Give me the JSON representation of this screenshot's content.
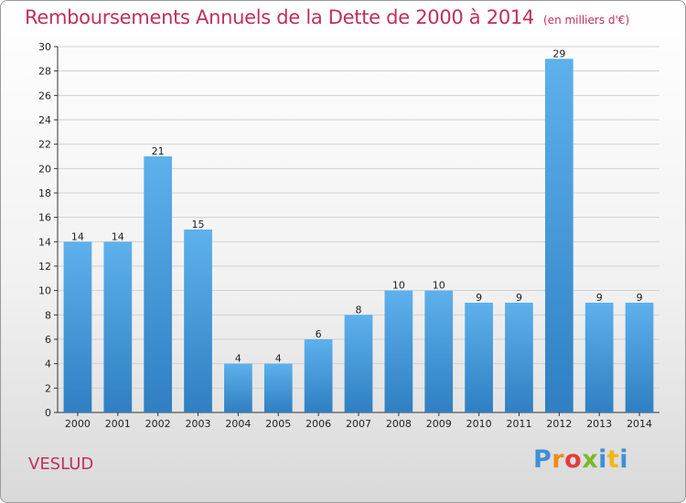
{
  "header": {
    "title": "Remboursements Annuels de la Dette de 2000 à 2014",
    "unit": "(en milliers d'€)"
  },
  "footer": {
    "commune": "VESLUD",
    "logo": "Proxiti"
  },
  "colors": {
    "title": "#c0305a",
    "bar_top": "#5db1ec",
    "bar_bottom": "#2f7fc2",
    "grid": "#d0d0d0",
    "axis": "#333333"
  },
  "chart_data": {
    "type": "bar",
    "title": "Remboursements Annuels de la Dette de 2000 à 2014",
    "xlabel": "",
    "ylabel": "",
    "categories": [
      "2000",
      "2001",
      "2002",
      "2003",
      "2004",
      "2005",
      "2006",
      "2007",
      "2008",
      "2009",
      "2010",
      "2011",
      "2012",
      "2013",
      "2014"
    ],
    "values": [
      14,
      14,
      21,
      15,
      4,
      4,
      6,
      8,
      10,
      10,
      9,
      9,
      29,
      9,
      9
    ],
    "ylim": [
      0,
      30
    ],
    "yticks": [
      0,
      2,
      4,
      6,
      8,
      10,
      12,
      14,
      16,
      18,
      20,
      22,
      24,
      26,
      28,
      30
    ],
    "grid": true,
    "legend": "none"
  }
}
